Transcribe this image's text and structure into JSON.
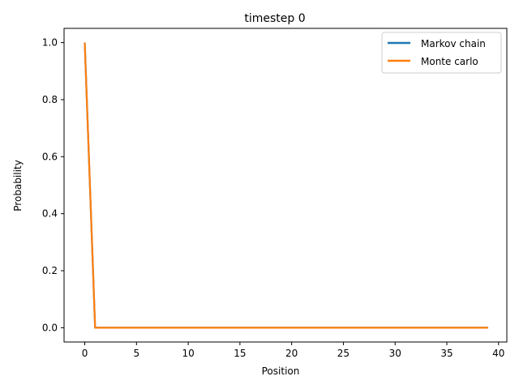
{
  "colors": {
    "markov": "#1f77b4",
    "monte": "#ff7f0e",
    "axes": "#000000",
    "background": "#ffffff"
  },
  "chart_data": {
    "type": "line",
    "title": "timestep 0",
    "xlabel": "Position",
    "ylabel": "Probability",
    "xlim": [
      -2.0,
      40.8
    ],
    "ylim": [
      -0.05,
      1.05
    ],
    "x_ticks": [
      0,
      5,
      10,
      15,
      20,
      25,
      30,
      35,
      40
    ],
    "x_tick_labels": [
      "0",
      "5",
      "10",
      "15",
      "20",
      "25",
      "30",
      "35",
      "40"
    ],
    "y_ticks": [
      0.0,
      0.2,
      0.4,
      0.6,
      0.8,
      1.0
    ],
    "y_tick_labels": [
      "0.0",
      "0.2",
      "0.4",
      "0.6",
      "0.8",
      "1.0"
    ],
    "grid": false,
    "legend_position": "top-right",
    "x": [
      0,
      1,
      2,
      3,
      4,
      5,
      6,
      7,
      8,
      9,
      10,
      11,
      12,
      13,
      14,
      15,
      16,
      17,
      18,
      19,
      20,
      21,
      22,
      23,
      24,
      25,
      26,
      27,
      28,
      29,
      30,
      31,
      32,
      33,
      34,
      35,
      36,
      37,
      38,
      39
    ],
    "series": [
      {
        "name": "Markov chain",
        "color": "#1f77b4",
        "values": [
          1,
          0,
          0,
          0,
          0,
          0,
          0,
          0,
          0,
          0,
          0,
          0,
          0,
          0,
          0,
          0,
          0,
          0,
          0,
          0,
          0,
          0,
          0,
          0,
          0,
          0,
          0,
          0,
          0,
          0,
          0,
          0,
          0,
          0,
          0,
          0,
          0,
          0,
          0,
          0
        ]
      },
      {
        "name": "Monte carlo",
        "color": "#ff7f0e",
        "values": [
          1,
          0,
          0,
          0,
          0,
          0,
          0,
          0,
          0,
          0,
          0,
          0,
          0,
          0,
          0,
          0,
          0,
          0,
          0,
          0,
          0,
          0,
          0,
          0,
          0,
          0,
          0,
          0,
          0,
          0,
          0,
          0,
          0,
          0,
          0,
          0,
          0,
          0,
          0,
          0
        ]
      }
    ]
  }
}
